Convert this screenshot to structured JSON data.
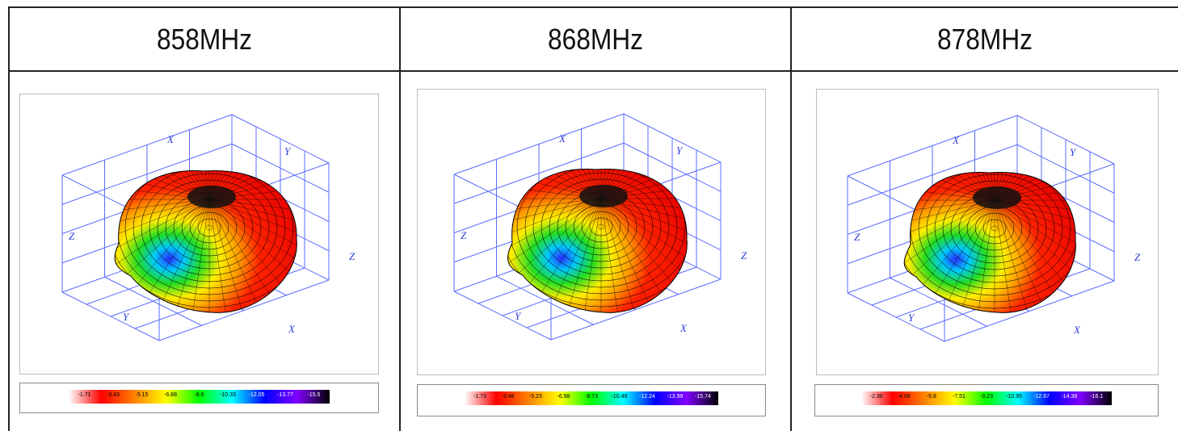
{
  "panels": [
    {
      "frequency": "858MHz",
      "axes": {
        "top_x": "X",
        "top_y": "Y",
        "left_z": "Z",
        "right_z": "Z",
        "bottom_y": "Y",
        "bottom_x": "X"
      },
      "legend_ticks": [
        "-1.71",
        "-3.43",
        "-5.15",
        "-6.88",
        "-8.6",
        "-10.33",
        "-12.05",
        "-13.77",
        "-15.5"
      ]
    },
    {
      "frequency": "868MHz",
      "axes": {
        "top_x": "X",
        "top_y": "Y",
        "left_z": "Z",
        "right_z": "Z",
        "bottom_y": "Y",
        "bottom_x": "X"
      },
      "legend_ticks": [
        "-1.73",
        "-3.48",
        "-5.23",
        "-6.98",
        "-8.73",
        "-10.49",
        "-12.24",
        "-13.99",
        "-15.74"
      ]
    },
    {
      "frequency": "878MHz",
      "axes": {
        "top_x": "X",
        "top_y": "Y",
        "left_z": "Z",
        "right_z": "Z",
        "bottom_y": "Y",
        "bottom_x": "X"
      },
      "legend_ticks": [
        "-2.36",
        "-4.08",
        "-5.8",
        "-7.51",
        "-9.23",
        "-10.95",
        "-12.67",
        "-14.38",
        "-16.1"
      ]
    }
  ],
  "colors": {
    "grid_lines": "#5a6bff",
    "axis_labels": "#2b3bd6",
    "table_border": "#222222",
    "colorscale": [
      "#ffffff",
      "#ff0000",
      "#ff8000",
      "#ffff00",
      "#00ff00",
      "#00ffff",
      "#0000ff",
      "#8000ff",
      "#000000"
    ]
  }
}
